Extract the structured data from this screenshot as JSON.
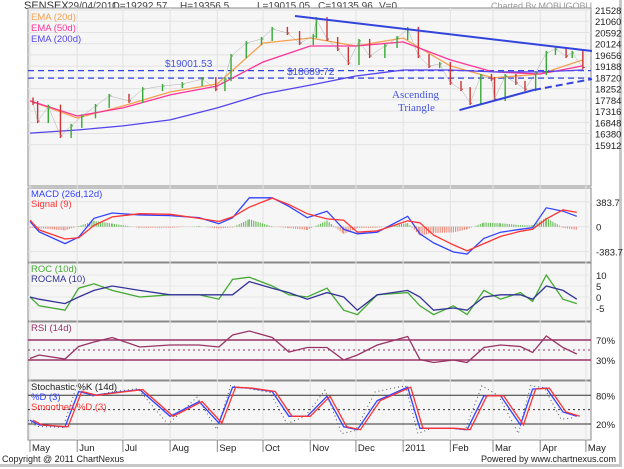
{
  "header": {
    "symbol": "SENSEX",
    "date": "29/04/2011",
    "open": "O=19292.57",
    "high": "H=19356.5",
    "low": "L=19015.05",
    "close": "C=19135.96",
    "volume": "V=0",
    "charted_by": "Charted By MOBUGOBU"
  },
  "footer": {
    "copyright": "Copyright @ 2011 ChartNexus",
    "powered_by": "Powered by www.chartnexus.com"
  },
  "chart_data": {
    "type": "line",
    "title": "SENSEX",
    "x_ticks": [
      {
        "label": "May",
        "date": "2010-05-01"
      },
      {
        "label": "Jun",
        "date": "2010-06-01"
      },
      {
        "label": "Jul",
        "date": "2010-07-01"
      },
      {
        "label": "Aug",
        "date": "2010-08-01"
      },
      {
        "label": "Sep",
        "date": "2010-09-01"
      },
      {
        "label": "Oct",
        "date": "2010-10-01"
      },
      {
        "label": "Nov",
        "date": "2010-11-01"
      },
      {
        "label": "Dec",
        "date": "2010-12-01"
      },
      {
        "label": "2011",
        "date": "2011-01-01"
      },
      {
        "label": "Feb",
        "date": "2011-02-01"
      },
      {
        "label": "Mar",
        "date": "2011-03-01"
      },
      {
        "label": "Apr",
        "date": "2011-04-01"
      },
      {
        "label": "May",
        "date": "2011-05-01"
      }
    ],
    "colors": {
      "up": "#33aa33",
      "down": "#cc3333",
      "ema20": "#f5a050",
      "ema50": "#ff3399",
      "ema200": "#5544ee",
      "trend": "#3344dd",
      "macd": "#3344ff",
      "signal": "#ff3333",
      "roc": "#44aa33",
      "rocma": "#333399",
      "rsi": "#993366",
      "stoch_d": "#3344ff",
      "stoch_sd": "#ff3333"
    },
    "price": {
      "yticks": [
        21528,
        21060,
        20592,
        20124,
        19656,
        19188,
        18720,
        18252,
        17784,
        17316,
        16848,
        16380,
        15912
      ],
      "ylim": [
        15912,
        21528
      ],
      "closes": [
        [
          "2010-05-03",
          17650
        ],
        [
          "2010-05-06",
          16900
        ],
        [
          "2010-05-13",
          17500
        ],
        [
          "2010-05-21",
          16280
        ],
        [
          "2010-05-28",
          16700
        ],
        [
          "2010-06-04",
          17100
        ],
        [
          "2010-06-13",
          17530
        ],
        [
          "2010-06-22",
          17950
        ],
        [
          "2010-07-05",
          17740
        ],
        [
          "2010-07-14",
          18230
        ],
        [
          "2010-07-27",
          18360
        ],
        [
          "2010-08-09",
          18440
        ],
        [
          "2010-08-22",
          18650
        ],
        [
          "2010-08-31",
          18230
        ],
        [
          "2010-09-06",
          18650
        ],
        [
          "2010-09-10",
          19610
        ],
        [
          "2010-09-20",
          20150
        ],
        [
          "2010-09-30",
          20320
        ],
        [
          "2010-10-07",
          20740
        ],
        [
          "2010-10-17",
          20570
        ],
        [
          "2010-10-25",
          20150
        ],
        [
          "2010-11-03",
          20440
        ],
        [
          "2010-11-05",
          21150
        ],
        [
          "2010-11-12",
          20320
        ],
        [
          "2010-11-19",
          19900
        ],
        [
          "2010-11-26",
          19320
        ],
        [
          "2010-12-03",
          20240
        ],
        [
          "2010-12-10",
          19610
        ],
        [
          "2010-12-20",
          20030
        ],
        [
          "2010-12-28",
          20360
        ],
        [
          "2011-01-04",
          20740
        ],
        [
          "2011-01-11",
          19610
        ],
        [
          "2011-01-18",
          19190
        ],
        [
          "2011-01-25",
          19280
        ],
        [
          "2011-02-01",
          18490
        ],
        [
          "2011-02-08",
          18230
        ],
        [
          "2011-02-14",
          17650
        ],
        [
          "2011-02-21",
          18780
        ],
        [
          "2011-02-28",
          18650
        ],
        [
          "2011-03-02",
          17820
        ],
        [
          "2011-03-09",
          18780
        ],
        [
          "2011-03-16",
          18490
        ],
        [
          "2011-03-22",
          18230
        ],
        [
          "2011-03-29",
          18900
        ],
        [
          "2011-04-05",
          19740
        ],
        [
          "2011-04-11",
          19900
        ],
        [
          "2011-04-18",
          19610
        ],
        [
          "2011-04-22",
          19740
        ],
        [
          "2011-04-29",
          19136
        ]
      ],
      "ema_dates": [
        "2010-05-01",
        "2010-06-01",
        "2010-07-01",
        "2010-08-01",
        "2010-09-01",
        "2010-10-01",
        "2010-11-01",
        "2010-12-01",
        "2011-01-01",
        "2011-02-01",
        "2011-03-01",
        "2011-04-01",
        "2011-04-29"
      ],
      "series": [
        {
          "name": "EMA (20d)",
          "key": "ema20",
          "values": [
            17740,
            17030,
            17530,
            18110,
            18450,
            20150,
            20360,
            20030,
            20360,
            19200,
            18700,
            18860,
            19450
          ]
        },
        {
          "name": "EMA (50d)",
          "key": "ema50",
          "values": [
            17740,
            17110,
            17450,
            17990,
            18360,
            19360,
            20030,
            20030,
            20200,
            19450,
            18950,
            18860,
            19200
          ]
        },
        {
          "name": "EMA (200d)",
          "key": "ema200",
          "values": [
            16400,
            16530,
            16700,
            16950,
            17450,
            18030,
            18400,
            18780,
            19030,
            19030,
            18950,
            18950,
            19030
          ]
        }
      ],
      "levels": [
        {
          "label": "$19001.53",
          "value": 19001.53
        },
        {
          "label": "$18689.72",
          "value": 18689.72
        }
      ],
      "trendlines": [
        {
          "from": [
            "2010-10-22",
            21280
          ],
          "to": [
            "2011-05-05",
            19820
          ],
          "style": "solid"
        },
        {
          "from": [
            "2011-02-07",
            17360
          ],
          "to": [
            "2011-03-28",
            18200
          ],
          "style": "solid"
        },
        {
          "from": [
            "2011-03-28",
            18200
          ],
          "to": [
            "2011-05-05",
            18650
          ],
          "style": "dashed"
        }
      ],
      "annotation": [
        "Ascending",
        "Triangle"
      ]
    },
    "indicator_dates": [
      "2010-05-01",
      "2010-05-07",
      "2010-05-24",
      "2010-06-02",
      "2010-06-12",
      "2010-06-24",
      "2010-07-12",
      "2010-08-01",
      "2010-08-20",
      "2010-09-02",
      "2010-09-11",
      "2010-09-22",
      "2010-10-07",
      "2010-10-18",
      "2010-10-30",
      "2010-11-12",
      "2010-11-23",
      "2010-12-02",
      "2010-12-15",
      "2011-01-04",
      "2011-01-12",
      "2011-01-21",
      "2011-02-03",
      "2011-02-12",
      "2011-02-23",
      "2011-03-06",
      "2011-03-19",
      "2011-03-27",
      "2011-04-05",
      "2011-04-16",
      "2011-04-25"
    ],
    "macd": {
      "yticks": [
        "383.7",
        "0",
        "-383.7"
      ],
      "ylim": [
        -383.7,
        383.7
      ],
      "series": [
        {
          "name": "MACD (26d,12d)",
          "key": "macd",
          "values": [
            80,
            -80,
            -260,
            -160,
            130,
            210,
            180,
            170,
            138,
            46,
            138,
            445,
            445,
            314,
            138,
            238,
            -40,
            -110,
            -85,
            160,
            -110,
            -250,
            -390,
            -420,
            -180,
            -85,
            -40,
            -15,
            290,
            238,
            160
          ]
        },
        {
          "name": "Signal (9)",
          "key": "signal",
          "values": [
            100,
            -50,
            -190,
            -170,
            20,
            150,
            200,
            190,
            128,
            80,
            150,
            300,
            440,
            340,
            200,
            120,
            100,
            -85,
            -65,
            90,
            60,
            -130,
            -280,
            -370,
            -260,
            -150,
            -70,
            -40,
            120,
            260,
            220
          ]
        }
      ]
    },
    "roc": {
      "yticks": [
        "10",
        "5",
        "0",
        "-5"
      ],
      "series": [
        {
          "name": "ROC (10d)",
          "key": "roc",
          "values": [
            0,
            -4,
            -6,
            4,
            6,
            3,
            0,
            1,
            1,
            -1,
            8,
            9,
            5,
            1,
            0,
            4,
            -6,
            -8,
            1,
            2,
            -4,
            -8,
            -4,
            -8,
            3,
            -1,
            2,
            -2,
            10,
            -1,
            -3
          ]
        },
        {
          "name": "ROCMA (10)",
          "key": "rocma",
          "values": [
            0,
            -1,
            -3,
            0,
            3,
            5,
            3,
            1,
            1,
            1,
            1,
            7,
            4,
            2,
            -1,
            2,
            0,
            -6,
            1,
            3,
            0,
            -6,
            -5,
            -6,
            0,
            1,
            1,
            -1,
            5,
            3,
            -1
          ]
        }
      ]
    },
    "rsi": {
      "yticks": [
        "70%",
        "30%"
      ],
      "levels": [
        70,
        50,
        30
      ],
      "series": [
        {
          "name": "RSI (14d)",
          "key": "rsi",
          "values": [
            33,
            40,
            32,
            57,
            66,
            75,
            56,
            60,
            60,
            56,
            80,
            88,
            75,
            46,
            55,
            55,
            30,
            40,
            60,
            77,
            31,
            25,
            30,
            25,
            55,
            60,
            57,
            45,
            78,
            55,
            42
          ]
        }
      ]
    },
    "stochastic": {
      "yticks": [
        "80%",
        "20%"
      ],
      "levels": [
        80,
        50,
        20
      ],
      "labels": [
        "Stochastic %K (14d)",
        "%D (3)",
        "Smoothed %D (3)"
      ],
      "d_values": [
        28,
        18,
        14,
        88,
        80,
        85,
        92,
        36,
        67,
        22,
        97,
        95,
        88,
        36,
        36,
        78,
        14,
        8,
        69,
        97,
        11,
        11,
        11,
        8,
        79,
        79,
        18,
        93,
        95,
        45,
        36
      ]
    }
  }
}
